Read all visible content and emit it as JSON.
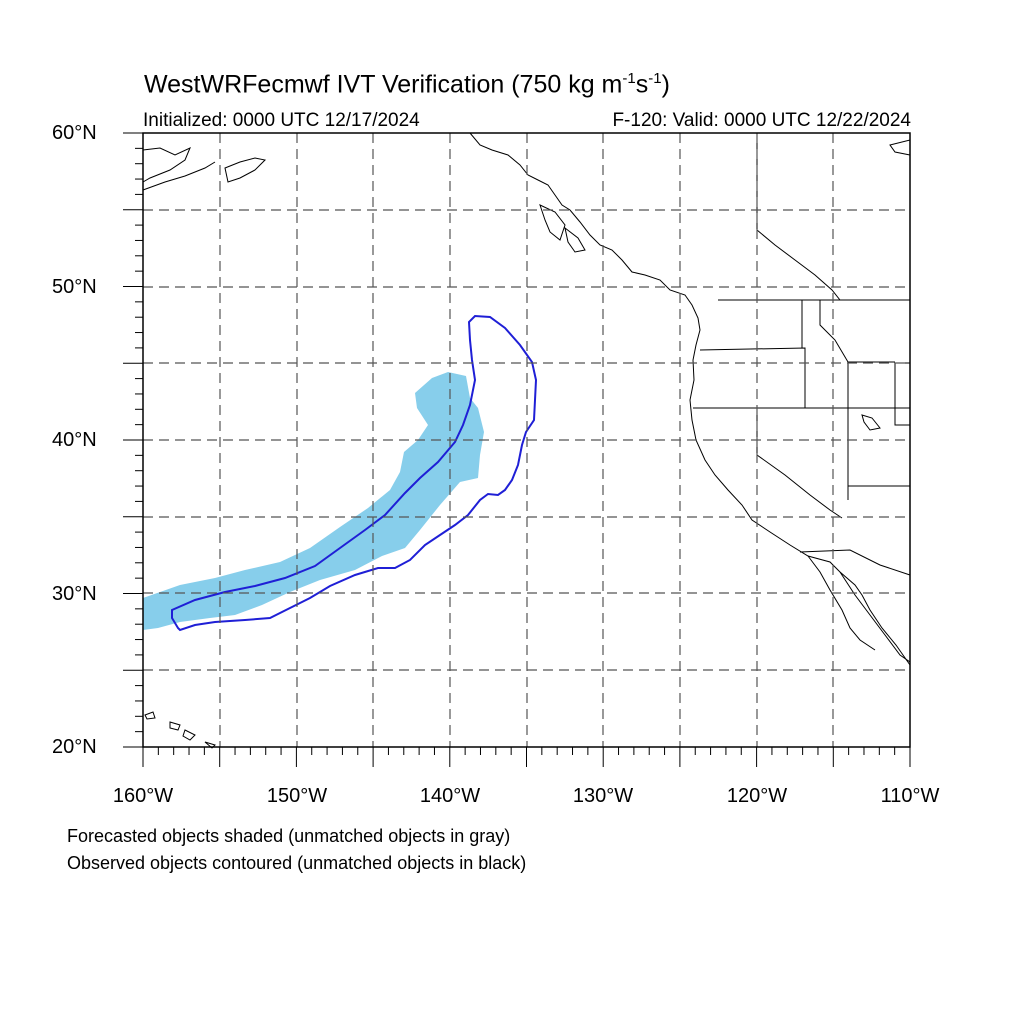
{
  "title": {
    "main": "WestWRFecmwf IVT Verification (750 kg m",
    "sup1": "-1",
    "mid": "s",
    "sup2": "-1",
    "end": ")"
  },
  "subtitle": {
    "left": "Initialized: 0000 UTC 12/17/2024",
    "right": "F-120: Valid: 0000 UTC 12/22/2024"
  },
  "map": {
    "extent": {
      "lon_min": -160,
      "lon_max": -110,
      "lat_min": 20,
      "lat_max": 60
    },
    "lat_labels": [
      "20°N",
      "30°N",
      "40°N",
      "50°N",
      "60°N"
    ],
    "lon_labels": [
      "160°W",
      "150°W",
      "140°W",
      "130°W",
      "120°W",
      "110°W"
    ],
    "gridlines": "dashed every 5°",
    "forecast_object_color": "#87ceeb",
    "observed_contour_color": "#1f1fd6",
    "coastline_color": "#000000"
  },
  "notes": {
    "line1": "Forecasted objects shaded (unmatched objects in gray)",
    "line2": "Observed objects contoured (unmatched objects in black)"
  }
}
